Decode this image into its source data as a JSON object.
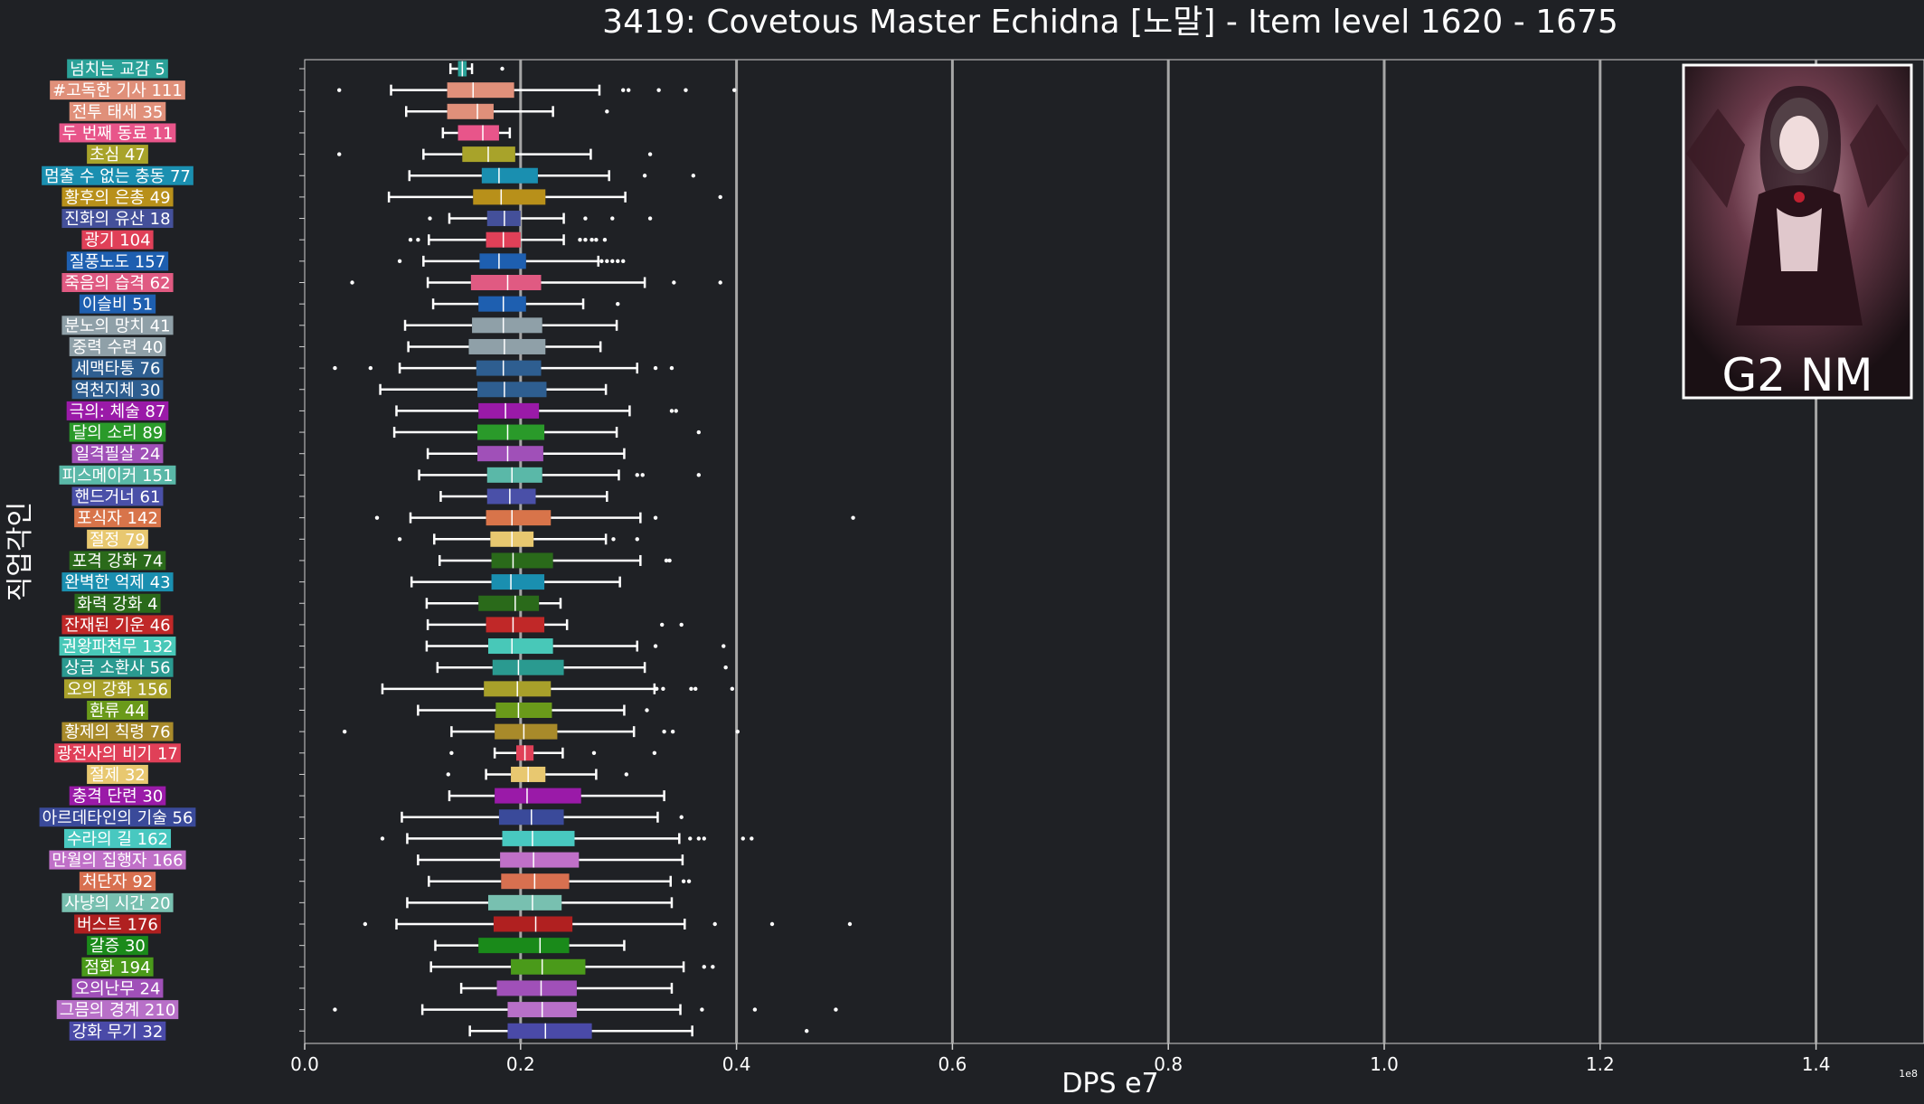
{
  "chart_data": {
    "type": "boxplot",
    "orientation": "horizontal",
    "title": "3419: Covetous Master Echidna [노말] - Item level 1620 - 1675",
    "xlabel": "DPS e7",
    "ylabel": "직업각인",
    "xlim": [
      0,
      15000000
    ],
    "x_ticks": [
      0,
      2000000,
      4000000,
      6000000,
      8000000,
      10000000,
      12000000,
      14000000
    ],
    "x_tick_labels": [
      "0.0",
      "0.2",
      "0.4",
      "0.6",
      "0.8",
      "1.0",
      "1.2",
      "1.4"
    ],
    "x_offset_label": "1e8",
    "grid": "vertical",
    "inset_label": "G2 NM",
    "categories": [
      {
        "label": "넘치는 교감 5",
        "color": "#2aa198",
        "min": 1350000,
        "q1": 1420000,
        "median": 1460000,
        "q3": 1500000,
        "max": 1550000,
        "outliers": [
          1830000
        ]
      },
      {
        "label": "#고독한 기사 111",
        "color": "#e0907a",
        "min": 800000,
        "q1": 1320000,
        "median": 1560000,
        "q3": 1940000,
        "max": 2730000,
        "outliers": [
          320000,
          2950000,
          3000000,
          3280000,
          3530000,
          3980000
        ]
      },
      {
        "label": "전투 태세 35",
        "color": "#e0907a",
        "min": 940000,
        "q1": 1320000,
        "median": 1600000,
        "q3": 1750000,
        "max": 2300000,
        "outliers": [
          2800000
        ]
      },
      {
        "label": "두 번째 동료 11",
        "color": "#e8558a",
        "min": 1280000,
        "q1": 1420000,
        "median": 1650000,
        "q3": 1800000,
        "max": 1900000,
        "outliers": []
      },
      {
        "label": "초심 47",
        "color": "#a8a32a",
        "min": 1100000,
        "q1": 1460000,
        "median": 1700000,
        "q3": 1950000,
        "max": 2650000,
        "outliers": [
          320000,
          3200000
        ]
      },
      {
        "label": "멈출 수 없는 충동 77",
        "color": "#1a8fb0",
        "min": 970000,
        "q1": 1640000,
        "median": 1800000,
        "q3": 2160000,
        "max": 2820000,
        "outliers": [
          3150000,
          3600000
        ]
      },
      {
        "label": "황후의 은총 49",
        "color": "#b8901a",
        "min": 780000,
        "q1": 1560000,
        "median": 1820000,
        "q3": 2230000,
        "max": 2970000,
        "outliers": [
          3850000
        ]
      },
      {
        "label": "진화의 유산 18",
        "color": "#44509a",
        "min": 1340000,
        "q1": 1690000,
        "median": 1850000,
        "q3": 2000000,
        "max": 2400000,
        "outliers": [
          1160000,
          2600000,
          2850000,
          3200000
        ]
      },
      {
        "label": "광기 104",
        "color": "#e04058",
        "min": 1150000,
        "q1": 1680000,
        "median": 1840000,
        "q3": 2000000,
        "max": 2400000,
        "outliers": [
          980000,
          1050000,
          2550000,
          2600000,
          2660000,
          2700000,
          2780000
        ]
      },
      {
        "label": "질풍노도 157",
        "color": "#1e5fb0",
        "min": 1100000,
        "q1": 1620000,
        "median": 1800000,
        "q3": 2050000,
        "max": 2720000,
        "outliers": [
          880000,
          2750000,
          2800000,
          2850000,
          2900000,
          2950000
        ]
      },
      {
        "label": "죽음의 습격 62",
        "color": "#e05a82",
        "min": 1140000,
        "q1": 1540000,
        "median": 1880000,
        "q3": 2190000,
        "max": 3150000,
        "outliers": [
          440000,
          3420000,
          3850000
        ]
      },
      {
        "label": "이슬비 51",
        "color": "#1e5fb0",
        "min": 1190000,
        "q1": 1610000,
        "median": 1840000,
        "q3": 2050000,
        "max": 2580000,
        "outliers": [
          2900000
        ]
      },
      {
        "label": "분노의 망치 41",
        "color": "#8fa0a8",
        "min": 930000,
        "q1": 1550000,
        "median": 1840000,
        "q3": 2200000,
        "max": 2890000,
        "outliers": []
      },
      {
        "label": "중력 수련 40",
        "color": "#8fa0a8",
        "min": 960000,
        "q1": 1520000,
        "median": 1850000,
        "q3": 2230000,
        "max": 2740000,
        "outliers": []
      },
      {
        "label": "세맥타통 76",
        "color": "#2e5e90",
        "min": 880000,
        "q1": 1590000,
        "median": 1840000,
        "q3": 2190000,
        "max": 3080000,
        "outliers": [
          280000,
          610000,
          3250000,
          3400000
        ]
      },
      {
        "label": "역천지체 30",
        "color": "#2e5e90",
        "min": 700000,
        "q1": 1600000,
        "median": 1850000,
        "q3": 2240000,
        "max": 2790000,
        "outliers": []
      },
      {
        "label": "극의: 체술 87",
        "color": "#9a1aa8",
        "min": 850000,
        "q1": 1610000,
        "median": 1860000,
        "q3": 2170000,
        "max": 3010000,
        "outliers": [
          3400000,
          3440000
        ]
      },
      {
        "label": "달의 소리 89",
        "color": "#2a9a2a",
        "min": 830000,
        "q1": 1600000,
        "median": 1880000,
        "q3": 2220000,
        "max": 2890000,
        "outliers": [
          3650000
        ]
      },
      {
        "label": "일격필살 24",
        "color": "#a050b8",
        "min": 1140000,
        "q1": 1600000,
        "median": 1880000,
        "q3": 2210000,
        "max": 2960000,
        "outliers": []
      },
      {
        "label": "피스메이커 151",
        "color": "#5ab8a8",
        "min": 1060000,
        "q1": 1690000,
        "median": 1920000,
        "q3": 2200000,
        "max": 2910000,
        "outliers": [
          3080000,
          3130000,
          3650000
        ]
      },
      {
        "label": "핸드거너 61",
        "color": "#4a50a8",
        "min": 1260000,
        "q1": 1690000,
        "median": 1900000,
        "q3": 2140000,
        "max": 2800000,
        "outliers": []
      },
      {
        "label": "포식자 142",
        "color": "#d8744a",
        "min": 980000,
        "q1": 1680000,
        "median": 1920000,
        "q3": 2280000,
        "max": 3110000,
        "outliers": [
          670000,
          3250000,
          5080000
        ]
      },
      {
        "label": "절정 79",
        "color": "#e8c870",
        "min": 1200000,
        "q1": 1720000,
        "median": 1920000,
        "q3": 2120000,
        "max": 2790000,
        "outliers": [
          880000,
          2860000,
          3080000
        ]
      },
      {
        "label": "포격 강화 74",
        "color": "#2a6a1a",
        "min": 1250000,
        "q1": 1730000,
        "median": 1930000,
        "q3": 2300000,
        "max": 3110000,
        "outliers": [
          3350000,
          3380000
        ]
      },
      {
        "label": "완벽한 억제 43",
        "color": "#1a8fb0",
        "min": 990000,
        "q1": 1730000,
        "median": 1910000,
        "q3": 2220000,
        "max": 2920000,
        "outliers": []
      },
      {
        "label": "화력 강화 4",
        "color": "#2a6a1a",
        "min": 1130000,
        "q1": 1610000,
        "median": 1950000,
        "q3": 2170000,
        "max": 2370000,
        "outliers": []
      },
      {
        "label": "잔재된 기운 46",
        "color": "#c02828",
        "min": 1140000,
        "q1": 1680000,
        "median": 1930000,
        "q3": 2220000,
        "max": 2430000,
        "outliers": [
          3310000,
          3490000
        ]
      },
      {
        "label": "권왕파천무 132",
        "color": "#48c8b8",
        "min": 1130000,
        "q1": 1700000,
        "median": 1920000,
        "q3": 2300000,
        "max": 3080000,
        "outliers": [
          3250000,
          3880000
        ]
      },
      {
        "label": "상급 소환사 56",
        "color": "#2a9a90",
        "min": 1230000,
        "q1": 1740000,
        "median": 1980000,
        "q3": 2400000,
        "max": 3150000,
        "outliers": [
          3900000
        ]
      },
      {
        "label": "오의 강화 156",
        "color": "#a8a02a",
        "min": 720000,
        "q1": 1660000,
        "median": 1970000,
        "q3": 2280000,
        "max": 3240000,
        "outliers": [
          3260000,
          3320000,
          3580000,
          3620000,
          3960000
        ]
      },
      {
        "label": "환류 44",
        "color": "#6a9a1a",
        "min": 1050000,
        "q1": 1770000,
        "median": 1980000,
        "q3": 2290000,
        "max": 2960000,
        "outliers": [
          3170000
        ]
      },
      {
        "label": "황제의 칙령 76",
        "color": "#a88a2a",
        "min": 1360000,
        "q1": 1760000,
        "median": 2030000,
        "q3": 2340000,
        "max": 3050000,
        "outliers": [
          370000,
          3330000,
          3410000,
          4010000
        ]
      },
      {
        "label": "광전사의 비기 17",
        "color": "#e04058",
        "min": 1760000,
        "q1": 1960000,
        "median": 2040000,
        "q3": 2120000,
        "max": 2390000,
        "outliers": [
          1360000,
          2680000,
          3240000
        ]
      },
      {
        "label": "절제 32",
        "color": "#e8c870",
        "min": 1680000,
        "q1": 1910000,
        "median": 2070000,
        "q3": 2230000,
        "max": 2700000,
        "outliers": [
          1330000,
          2980000
        ]
      },
      {
        "label": "충격 단련 30",
        "color": "#9a1aa8",
        "min": 1340000,
        "q1": 1760000,
        "median": 2060000,
        "q3": 2560000,
        "max": 3330000,
        "outliers": []
      },
      {
        "label": "아르데타인의 기술 56",
        "color": "#3a4a9a",
        "min": 900000,
        "q1": 1800000,
        "median": 2100000,
        "q3": 2400000,
        "max": 3270000,
        "outliers": [
          3490000
        ]
      },
      {
        "label": "수라의 길 162",
        "color": "#48c8c0",
        "min": 950000,
        "q1": 1830000,
        "median": 2110000,
        "q3": 2500000,
        "max": 3470000,
        "outliers": [
          720000,
          3570000,
          3650000,
          3700000,
          4060000,
          4140000
        ]
      },
      {
        "label": "만월의 집행자 166",
        "color": "#c070c8",
        "min": 1050000,
        "q1": 1810000,
        "median": 2120000,
        "q3": 2540000,
        "max": 3500000,
        "outliers": []
      },
      {
        "label": "처단자 92",
        "color": "#d87050",
        "min": 1150000,
        "q1": 1820000,
        "median": 2130000,
        "q3": 2450000,
        "max": 3390000,
        "outliers": [
          3510000,
          3560000
        ]
      },
      {
        "label": "사냥의 시간 20",
        "color": "#78c0b0",
        "min": 950000,
        "q1": 1700000,
        "median": 2110000,
        "q3": 2380000,
        "max": 3400000,
        "outliers": []
      },
      {
        "label": "버스트 176",
        "color": "#b02020",
        "min": 850000,
        "q1": 1750000,
        "median": 2140000,
        "q3": 2480000,
        "max": 3520000,
        "outliers": [
          560000,
          3800000,
          4330000,
          5050000
        ]
      },
      {
        "label": "갈증 30",
        "color": "#1a8a1a",
        "min": 1210000,
        "q1": 1610000,
        "median": 2180000,
        "q3": 2450000,
        "max": 2960000,
        "outliers": []
      },
      {
        "label": "점화 194",
        "color": "#4a9a1a",
        "min": 1170000,
        "q1": 1910000,
        "median": 2200000,
        "q3": 2600000,
        "max": 3510000,
        "outliers": [
          3700000,
          3780000
        ]
      },
      {
        "label": "오의난무 24",
        "color": "#a050b8",
        "min": 1450000,
        "q1": 1780000,
        "median": 2190000,
        "q3": 2520000,
        "max": 3400000,
        "outliers": []
      },
      {
        "label": "그믐의 경계 210",
        "color": "#b870c8",
        "min": 1090000,
        "q1": 1880000,
        "median": 2200000,
        "q3": 2520000,
        "max": 3480000,
        "outliers": [
          280000,
          3680000,
          4170000,
          4920000
        ]
      },
      {
        "label": "강화 무기 32",
        "color": "#4a4aa8",
        "min": 1530000,
        "q1": 1880000,
        "median": 2230000,
        "q3": 2660000,
        "max": 3590000,
        "outliers": [
          4650000
        ]
      }
    ]
  }
}
